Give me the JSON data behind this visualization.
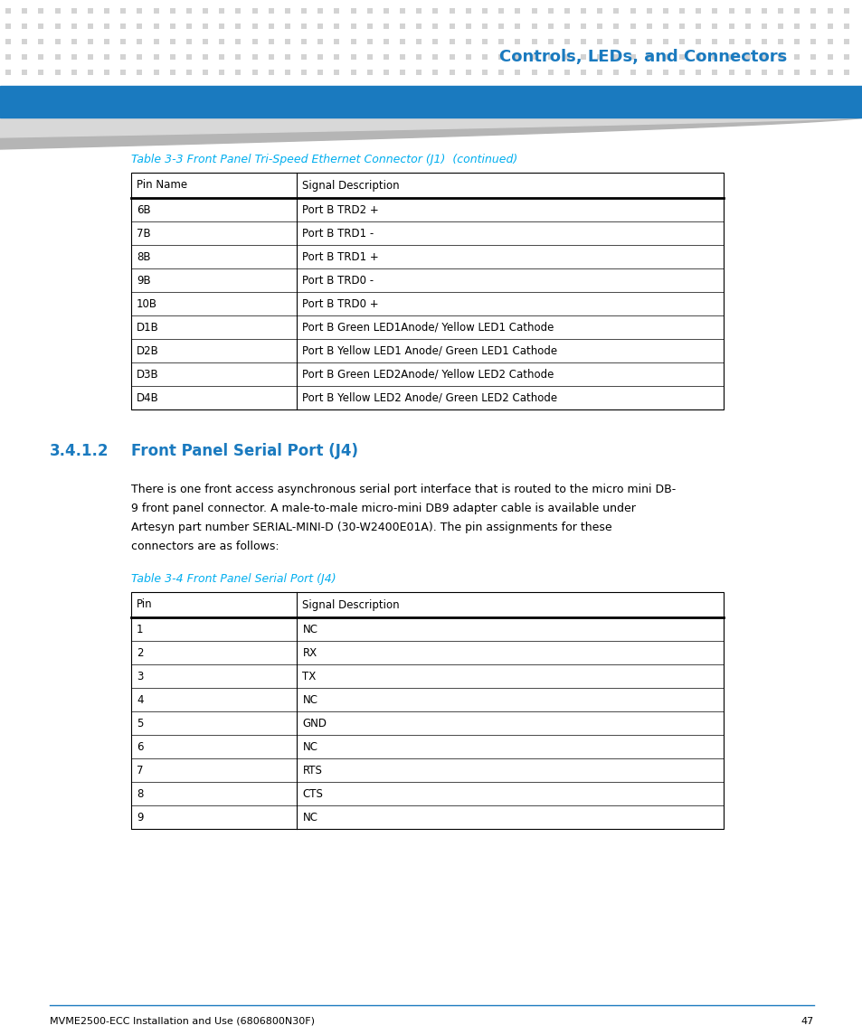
{
  "page_bg": "#ffffff",
  "header_dot_color": "#d3d3d3",
  "header_blue_bar_color": "#1a7abf",
  "header_title": "Controls, LEDs, and Connectors",
  "header_title_color": "#1a7abf",
  "table1_caption": "Table 3-3 Front Panel Tri-Speed Ethernet Connector (J1)  (continued)",
  "table1_caption_color": "#00aeef",
  "table1_headers": [
    "Pin Name",
    "Signal Description"
  ],
  "table1_rows": [
    [
      "6B",
      "Port B TRD2 +"
    ],
    [
      "7B",
      "Port B TRD1 -"
    ],
    [
      "8B",
      "Port B TRD1 +"
    ],
    [
      "9B",
      "Port B TRD0 -"
    ],
    [
      "10B",
      "Port B TRD0 +"
    ],
    [
      "D1B",
      "Port B Green LED1Anode/ Yellow LED1 Cathode"
    ],
    [
      "D2B",
      "Port B Yellow LED1 Anode/ Green LED1 Cathode"
    ],
    [
      "D3B",
      "Port B Green LED2Anode/ Yellow LED2 Cathode"
    ],
    [
      "D4B",
      "Port B Yellow LED2 Anode/ Green LED2 Cathode"
    ]
  ],
  "section_number": "3.4.1.2",
  "section_title": "Front Panel Serial Port (J4)",
  "section_color": "#1a7abf",
  "body_text_lines": [
    "There is one front access asynchronous serial port interface that is routed to the micro mini DB-",
    "9 front panel connector. A male-to-male micro-mini DB9 adapter cable is available under",
    "Artesyn part number SERIAL-MINI-D (30-W2400E01A). The pin assignments for these",
    "connectors are as follows:"
  ],
  "table2_caption": "Table 3-4 Front Panel Serial Port (J4)",
  "table2_caption_color": "#00aeef",
  "table2_headers": [
    "Pin",
    "Signal Description"
  ],
  "table2_rows": [
    [
      "1",
      "NC"
    ],
    [
      "2",
      "RX"
    ],
    [
      "3",
      "TX"
    ],
    [
      "4",
      "NC"
    ],
    [
      "5",
      "GND"
    ],
    [
      "6",
      "NC"
    ],
    [
      "7",
      "RTS"
    ],
    [
      "8",
      "CTS"
    ],
    [
      "9",
      "NC"
    ]
  ],
  "footer_text": "MVME2500-ECC Installation and Use (6806800N30F)",
  "footer_page": "47",
  "footer_line_color": "#1a7abf"
}
